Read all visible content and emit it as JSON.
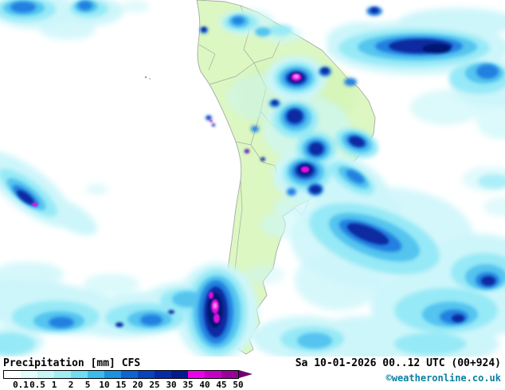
{
  "map": {
    "region": "South America precipitation forecast",
    "land_color": "#dcf7c2",
    "ocean_color": "#ffffff",
    "border_color": "#a3aaa0",
    "palette": {
      "light": "#cdf6fa",
      "cyan": "#96e9f6",
      "mid": "#55c4ef",
      "blue": "#2280e0",
      "navy": "#0a2aa0",
      "deep": "#041670",
      "magenta": "#e50ae5",
      "pink": "#ff8df2"
    }
  },
  "footer": {
    "title": "Precipitation",
    "units": "[mm]",
    "model": "CFS",
    "datetime": "Sa 10-01-2026 00..12 UTC (00+924)",
    "copyright": "©weatheronline.co.uk"
  },
  "legend": {
    "labels": [
      "0.1",
      "0.5",
      "1",
      "2",
      "5",
      "10",
      "15",
      "20",
      "25",
      "30",
      "35",
      "40",
      "45",
      "50"
    ],
    "segments": [
      "#ffffff",
      "#e2fbfb",
      "#c6f5f6",
      "#a2edf3",
      "#70ddf2",
      "#3cbcec",
      "#1a92e2",
      "#0c66d2",
      "#0844c0",
      "#062aa8",
      "#041a8e",
      "#ea00ea",
      "#c400c4",
      "#9a009a"
    ],
    "arrow_color": "#6e006e"
  }
}
